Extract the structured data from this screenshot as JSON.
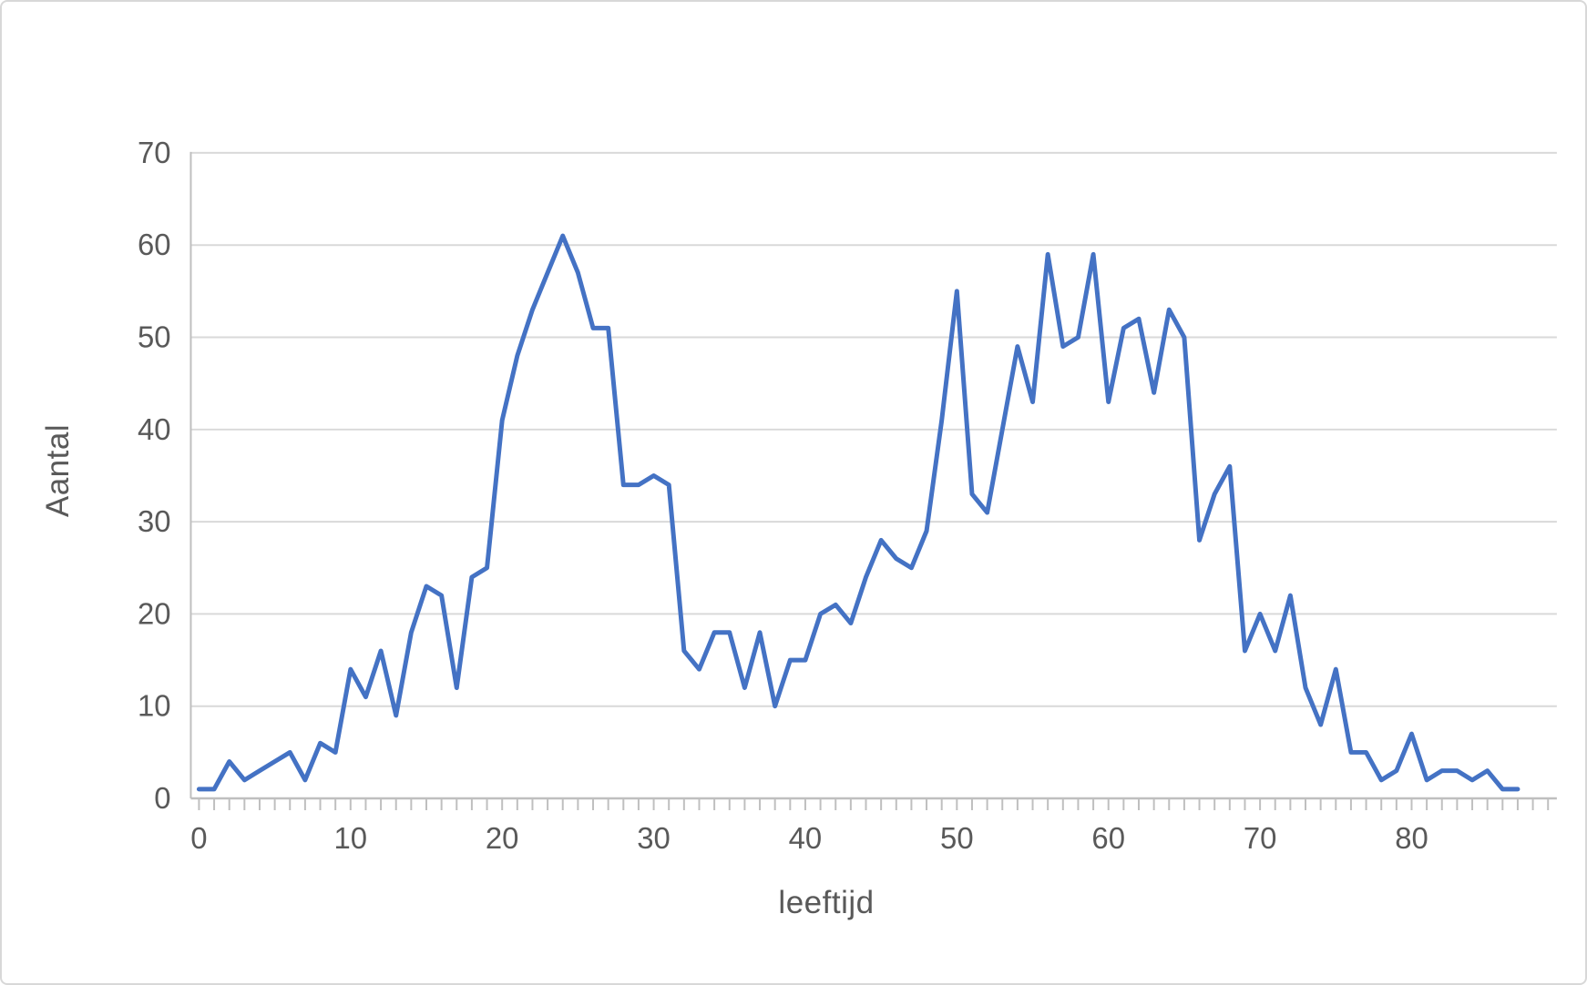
{
  "chart_data": {
    "type": "line",
    "title": "",
    "xlabel": "leeftijd",
    "ylabel": "Aantal",
    "x": [
      0,
      1,
      2,
      3,
      4,
      5,
      6,
      7,
      8,
      9,
      10,
      11,
      12,
      13,
      14,
      15,
      16,
      17,
      18,
      19,
      20,
      21,
      22,
      23,
      24,
      25,
      26,
      27,
      28,
      29,
      30,
      31,
      32,
      33,
      34,
      35,
      36,
      37,
      38,
      39,
      40,
      41,
      42,
      43,
      44,
      45,
      46,
      47,
      48,
      49,
      50,
      51,
      52,
      53,
      54,
      55,
      56,
      57,
      58,
      59,
      60,
      61,
      62,
      63,
      64,
      65,
      66,
      67,
      68,
      69,
      70,
      71,
      72,
      73,
      74,
      75,
      76,
      77,
      78,
      79,
      80,
      81,
      82,
      83,
      84,
      85,
      86,
      87
    ],
    "series": [
      {
        "name": "Aantal",
        "values": [
          1,
          1,
          4,
          2,
          3,
          4,
          5,
          2,
          6,
          5,
          14,
          11,
          16,
          9,
          18,
          23,
          22,
          12,
          24,
          25,
          41,
          48,
          53,
          57,
          61,
          57,
          51,
          51,
          34,
          34,
          35,
          34,
          16,
          14,
          18,
          18,
          12,
          18,
          10,
          15,
          15,
          20,
          21,
          19,
          24,
          28,
          26,
          25,
          29,
          41,
          55,
          33,
          31,
          40,
          49,
          43,
          59,
          49,
          50,
          59,
          43,
          51,
          52,
          44,
          53,
          50,
          28,
          33,
          36,
          16,
          20,
          16,
          22,
          12,
          8,
          14,
          5,
          5,
          2,
          3,
          7,
          2,
          3,
          3,
          2,
          3,
          1,
          1
        ]
      }
    ],
    "xticks": [
      0,
      10,
      20,
      30,
      40,
      50,
      60,
      70,
      80
    ],
    "yticks": [
      0,
      10,
      20,
      30,
      40,
      50,
      60,
      70
    ],
    "xlim": [
      0,
      89
    ],
    "ylim": [
      0,
      70
    ],
    "grid": true,
    "legend": false,
    "line_color": "#4472C4",
    "grid_color": "#d9d9d9",
    "axis_color": "#bfbfbf",
    "tick_color": "#bfbfbf",
    "label_color": "#595959"
  },
  "frame": {
    "background": "#ffffff",
    "border_color": "#d8d8d8"
  }
}
